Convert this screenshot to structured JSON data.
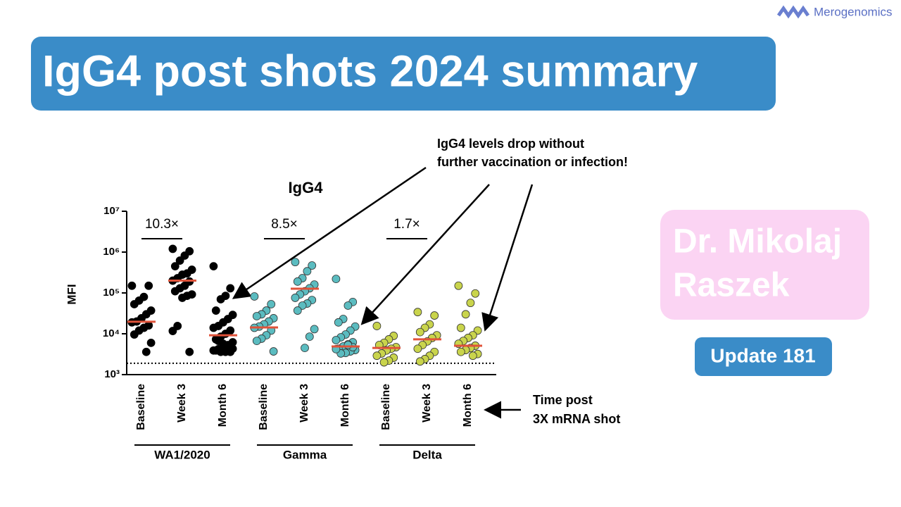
{
  "logo": "Merogenomics",
  "banner": "IgG4 post shots 2024 summary",
  "author": [
    "Dr. Mikolaj",
    "Raszek"
  ],
  "update": "Update 181",
  "callout": [
    "IgG4 levels drop without",
    "further vaccination or infection!"
  ],
  "x_note": [
    "Time post",
    "3X mRNA shot"
  ],
  "chart_data": {
    "type": "strip",
    "title": "IgG4",
    "y_label": "MFI",
    "log_y": true,
    "ylim": [
      1000,
      10000000
    ],
    "yticks": [
      {
        "value": 1000,
        "label": "10³"
      },
      {
        "value": 10000,
        "label": "10⁴"
      },
      {
        "value": 100000,
        "label": "10⁵"
      },
      {
        "value": 1000000,
        "label": "10⁶"
      },
      {
        "value": 10000000,
        "label": "10⁷"
      }
    ],
    "median_color": "#e0533a",
    "detection_limit": 1900,
    "groups": [
      {
        "name": "WA1/2020",
        "color": "#000000",
        "fold_label": "10.3×",
        "categories": [
          "Baseline",
          "Week 3",
          "Month 6"
        ],
        "values": [
          [
            150000,
            150000,
            80000,
            65000,
            53000,
            37000,
            30000,
            24000,
            20000,
            19000,
            16000,
            14000,
            12000,
            9600,
            6000,
            3600
          ],
          [
            1200000,
            1050000,
            820000,
            620000,
            450000,
            370000,
            300000,
            280000,
            230000,
            200000,
            190000,
            150000,
            130000,
            110000,
            92000,
            85000,
            76000,
            15500,
            11700,
            3600
          ],
          [
            450000,
            130000,
            85000,
            70000,
            37000,
            29000,
            23000,
            19000,
            15500,
            14000,
            12000,
            10000,
            8500,
            7300,
            6200,
            5300,
            4700,
            4200,
            3900,
            3600,
            3600,
            3600,
            3900,
            4300,
            4900,
            5700,
            6700
          ]
        ],
        "medians": [
          19700,
          200000,
          9200
        ]
      },
      {
        "name": "Gamma",
        "color": "#5bbcc0",
        "fold_label": "8.5×",
        "categories": [
          "Baseline",
          "Week 3",
          "Month 6"
        ],
        "values": [
          [
            82000,
            53000,
            37000,
            30000,
            27000,
            24000,
            20000,
            17000,
            15000,
            14000,
            12000,
            9200,
            7600,
            6700,
            3700
          ],
          [
            570000,
            470000,
            340000,
            230000,
            190000,
            160000,
            130000,
            110000,
            92000,
            76000,
            67000,
            55000,
            49000,
            37000,
            13000,
            8500,
            4500
          ],
          [
            220000,
            60000,
            49000,
            23000,
            19000,
            15000,
            12000,
            9600,
            8200,
            7000,
            6200,
            5500,
            4900,
            4300,
            4000,
            3700,
            3400,
            3300,
            4200,
            4700,
            5300
          ]
        ],
        "medians": [
          14300,
          127000,
          4900
        ]
      },
      {
        "name": "Delta",
        "color": "#c9d44c",
        "fold_label": "1.7×",
        "categories": [
          "Baseline",
          "Week 3",
          "Month 6"
        ],
        "values": [
          [
            15500,
            8900,
            7300,
            6000,
            5300,
            4700,
            4300,
            3900,
            3300,
            2900,
            2600,
            2200,
            2000
          ],
          [
            34000,
            28000,
            17000,
            14000,
            11000,
            9200,
            7900,
            6500,
            5300,
            4300,
            3600,
            2900,
            2400,
            2100
          ],
          [
            150000,
            97000,
            57000,
            30000,
            14000,
            12000,
            9200,
            7900,
            6700,
            5700,
            5100,
            4500,
            4000,
            3600,
            3200,
            2900
          ]
        ],
        "medians": [
          4500,
          7300,
          5100
        ]
      }
    ]
  }
}
